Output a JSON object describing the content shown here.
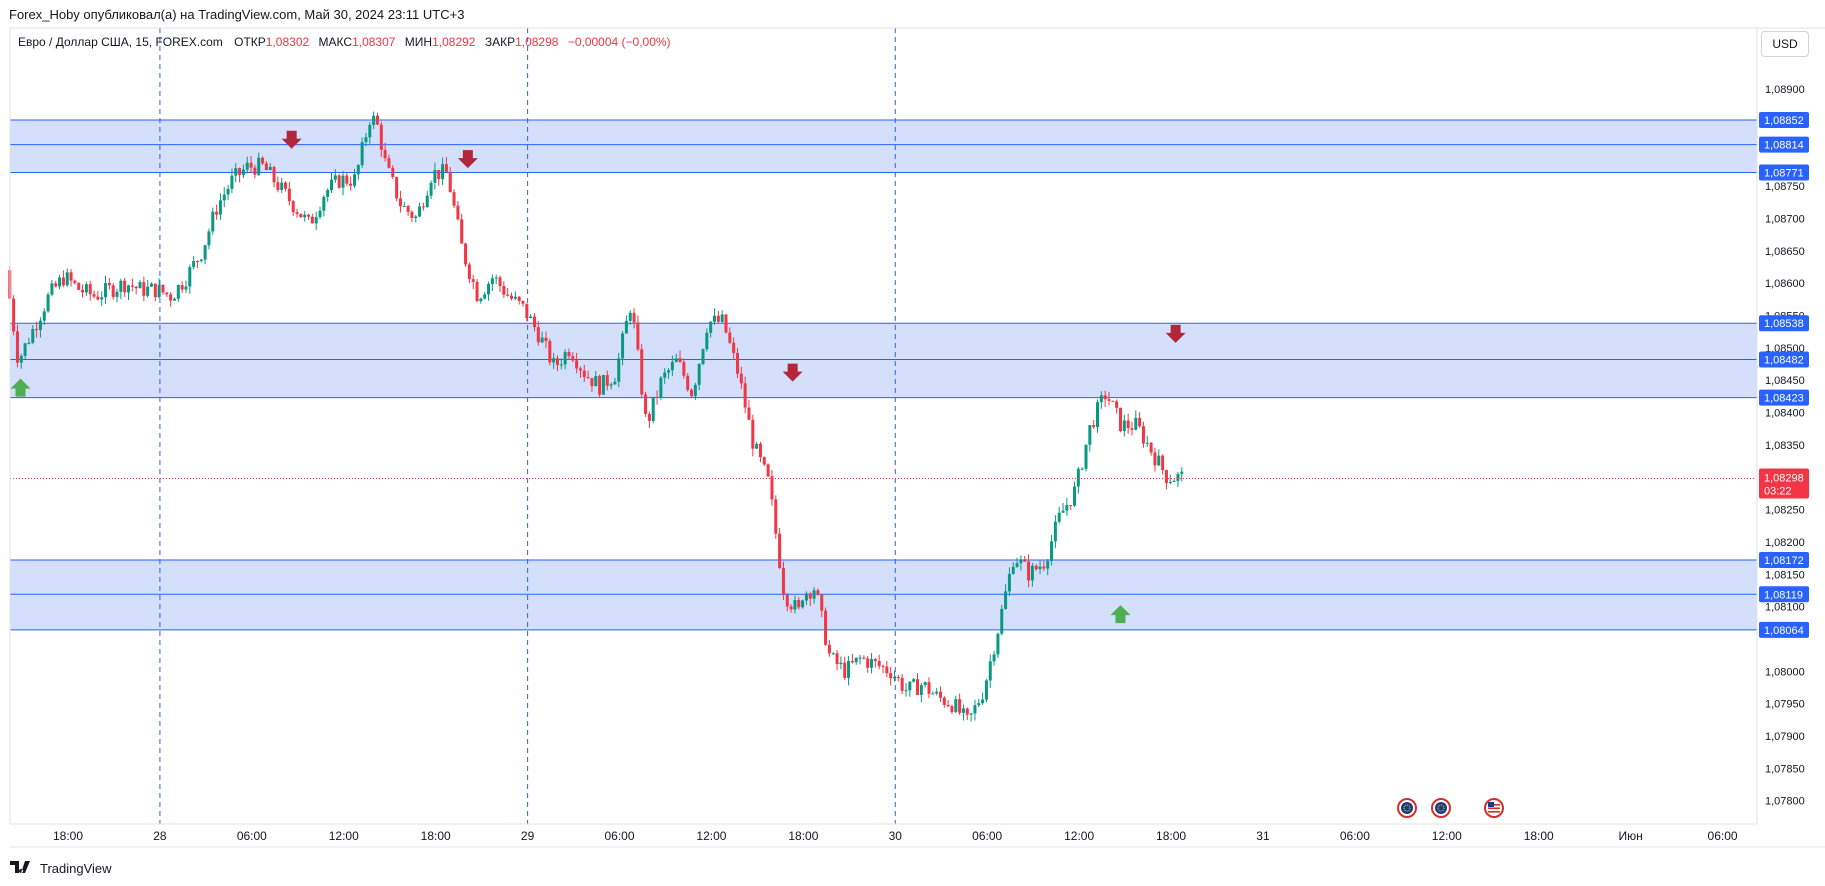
{
  "header": {
    "published_line": "Forex_Hoby опубликовал(а) на TradingView.com, Май 30, 2024 23:11 UTC+3"
  },
  "symbol_line": {
    "name": "Евро / Доллар США, 15, FOREX.com",
    "open_label": "ОТКР",
    "open_value": "1,08302",
    "high_label": "МАКС",
    "high_value": "1,08307",
    "low_label": "МИН",
    "low_value": "1,08292",
    "close_label": "ЗАКР",
    "close_value": "1,08298",
    "change": "−0,00004 (−0,00%)"
  },
  "currency_button": "USD",
  "price_badge": {
    "value": "1,08298",
    "countdown": "03:22"
  },
  "branding": {
    "logo_text": "TradingView"
  },
  "colors": {
    "up": "#089981",
    "down": "#f23645",
    "zone_fill": "#d4dffb",
    "zone_line": "#2962ff",
    "arrow_down": "#b2263a",
    "arrow_up": "#4caf50",
    "last_price": "#f23645"
  },
  "chart_data": {
    "type": "candlestick",
    "symbol": "EURUSD",
    "timeframe": "15",
    "ylim": [
      1.0776,
      1.0896
    ],
    "y_ticks": [
      "1,08900",
      "1,08750",
      "1,08700",
      "1,08650",
      "1,08600",
      "1,08550",
      "1,08500",
      "1,08450",
      "1,08400",
      "1,08350",
      "1,08250",
      "1,08200",
      "1,08150",
      "1,08100",
      "1,08000",
      "1,07950",
      "1,07900",
      "1,07850",
      "1,07800"
    ],
    "y_tick_values": [
      1.089,
      1.0875,
      1.087,
      1.0865,
      1.086,
      1.0855,
      1.085,
      1.0845,
      1.084,
      1.0835,
      1.0825,
      1.082,
      1.0815,
      1.081,
      1.08,
      1.0795,
      1.079,
      1.0785,
      1.078
    ],
    "x_labels": [
      "18:00",
      "28",
      "06:00",
      "12:00",
      "18:00",
      "29",
      "06:00",
      "12:00",
      "18:00",
      "30",
      "06:00",
      "12:00",
      "18:00",
      "31",
      "06:00",
      "12:00",
      "18:00",
      "Июн",
      "06:00"
    ],
    "x_label_hours": [
      18,
      24,
      30,
      36,
      42,
      48,
      54,
      60,
      66,
      72,
      78,
      84,
      90,
      96,
      102,
      108,
      114,
      120,
      126
    ],
    "day_separators_hours": [
      24,
      48,
      72
    ],
    "last_price": 1.08298,
    "zones": [
      {
        "lines": [
          "1,08852",
          "1,08814",
          "1,08771"
        ],
        "values": [
          1.08852,
          1.08814,
          1.08771
        ]
      },
      {
        "lines": [
          "1,08538",
          "1,08482",
          "1,08423"
        ],
        "values": [
          1.08538,
          1.08482,
          1.08423
        ]
      },
      {
        "lines": [
          "1,08172",
          "1,08119",
          "1,08064"
        ],
        "values": [
          1.08172,
          1.08119,
          1.08064
        ]
      }
    ],
    "annotations": [
      {
        "type": "arrow-up",
        "hour": 14.9,
        "price": 1.0844
      },
      {
        "type": "arrow-down",
        "hour": 32.6,
        "price": 1.0882
      },
      {
        "type": "arrow-down",
        "hour": 44.1,
        "price": 1.0879
      },
      {
        "type": "arrow-down",
        "hour": 65.3,
        "price": 1.0846
      },
      {
        "type": "arrow-up",
        "hour": 86.7,
        "price": 1.0809
      },
      {
        "type": "arrow-down",
        "hour": 90.3,
        "price": 1.0852
      }
    ],
    "path_hours": [
      14.2,
      15,
      16,
      17,
      18,
      19,
      20,
      21,
      22,
      23,
      24,
      25,
      26,
      27,
      28,
      29,
      30,
      31,
      32,
      33,
      34,
      35,
      36,
      37,
      38,
      38.5,
      39,
      40,
      41,
      42,
      43,
      44,
      45,
      46,
      47,
      48,
      49,
      50,
      51,
      52,
      53,
      54,
      55,
      56,
      57,
      58,
      59,
      60,
      61,
      62,
      63,
      64,
      65,
      66,
      66.2,
      67,
      68,
      69,
      70,
      71,
      72,
      73,
      74,
      75,
      76,
      77,
      78,
      79,
      80,
      81,
      82,
      83,
      84,
      85,
      86,
      87,
      88,
      89,
      90,
      91,
      92,
      93,
      94,
      95.4
    ],
    "path_prices": [
      1.0862,
      1.0848,
      1.0853,
      1.0858,
      1.0861,
      1.0859,
      1.0858,
      1.0859,
      1.086,
      1.0859,
      1.0859,
      1.0858,
      1.0861,
      1.0865,
      1.0872,
      1.0876,
      1.0878,
      1.0878,
      1.0875,
      1.0872,
      1.0869,
      1.0874,
      1.0876,
      1.0876,
      1.0886,
      1.0884,
      1.0878,
      1.0872,
      1.087,
      1.0877,
      1.0877,
      1.0865,
      1.0858,
      1.0861,
      1.0858,
      1.0856,
      1.0852,
      1.0847,
      1.085,
      1.0846,
      1.0844,
      1.0846,
      1.0857,
      1.0838,
      1.0845,
      1.0848,
      1.0843,
      1.0854,
      1.0854,
      1.0846,
      1.0835,
      1.0829,
      1.0812,
      1.0809,
      1.0812,
      1.0813,
      1.0802,
      1.08,
      1.0802,
      1.0801,
      1.08,
      1.0797,
      1.0798,
      1.0796,
      1.0795,
      1.0792,
      1.0797,
      1.0807,
      1.0818,
      1.0815,
      1.0817,
      1.0824,
      1.0828,
      1.0838,
      1.0843,
      1.0838,
      1.0838,
      1.0834,
      1.083,
      1.083
    ]
  }
}
